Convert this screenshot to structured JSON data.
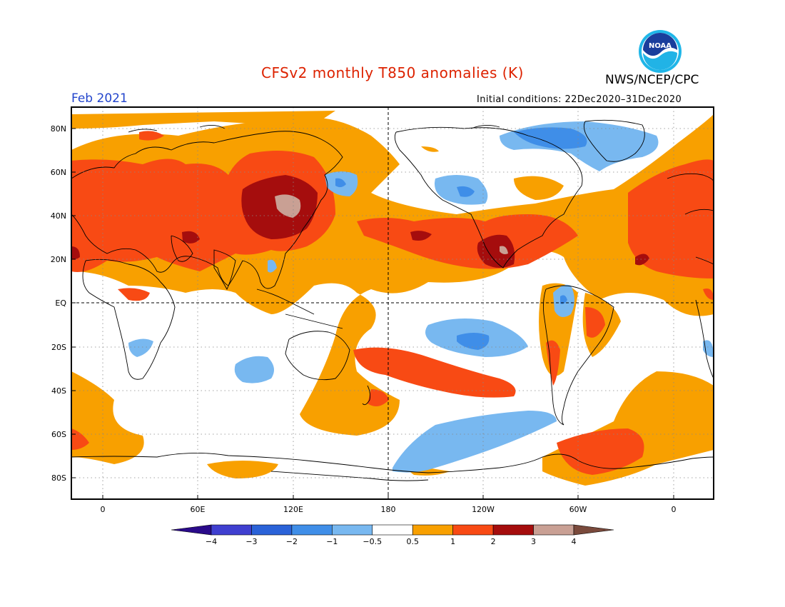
{
  "title": "CFSv2 monthly T850 anomalies (K)",
  "organization": "NWS/NCEP/CPC",
  "logo_text": "NOAA",
  "valid_month": "Feb 2021",
  "initial_conditions": "Initial conditions: 22Dec2020–31Dec2020",
  "colors": {
    "title": "#dd2200",
    "date": "#2244cc",
    "frame": "#000000"
  },
  "map": {
    "lat_labels": [
      "80N",
      "60N",
      "40N",
      "20N",
      "EQ",
      "20S",
      "40S",
      "60S",
      "80S"
    ],
    "lon_labels": [
      "0",
      "60E",
      "120E",
      "180",
      "120W",
      "60W",
      "0"
    ]
  },
  "colorbar": {
    "colors": [
      "#2a0a8a",
      "#3f3fd0",
      "#2a62d8",
      "#3f8ee8",
      "#78b8f0",
      "#ffffff",
      "#f8a000",
      "#f84a14",
      "#a50d0d",
      "#c9a094",
      "#7a4a3c"
    ],
    "labels": [
      "−4",
      "−3",
      "−2",
      "−1",
      "−0.5",
      "0.5",
      "1",
      "2",
      "3",
      "4"
    ]
  }
}
